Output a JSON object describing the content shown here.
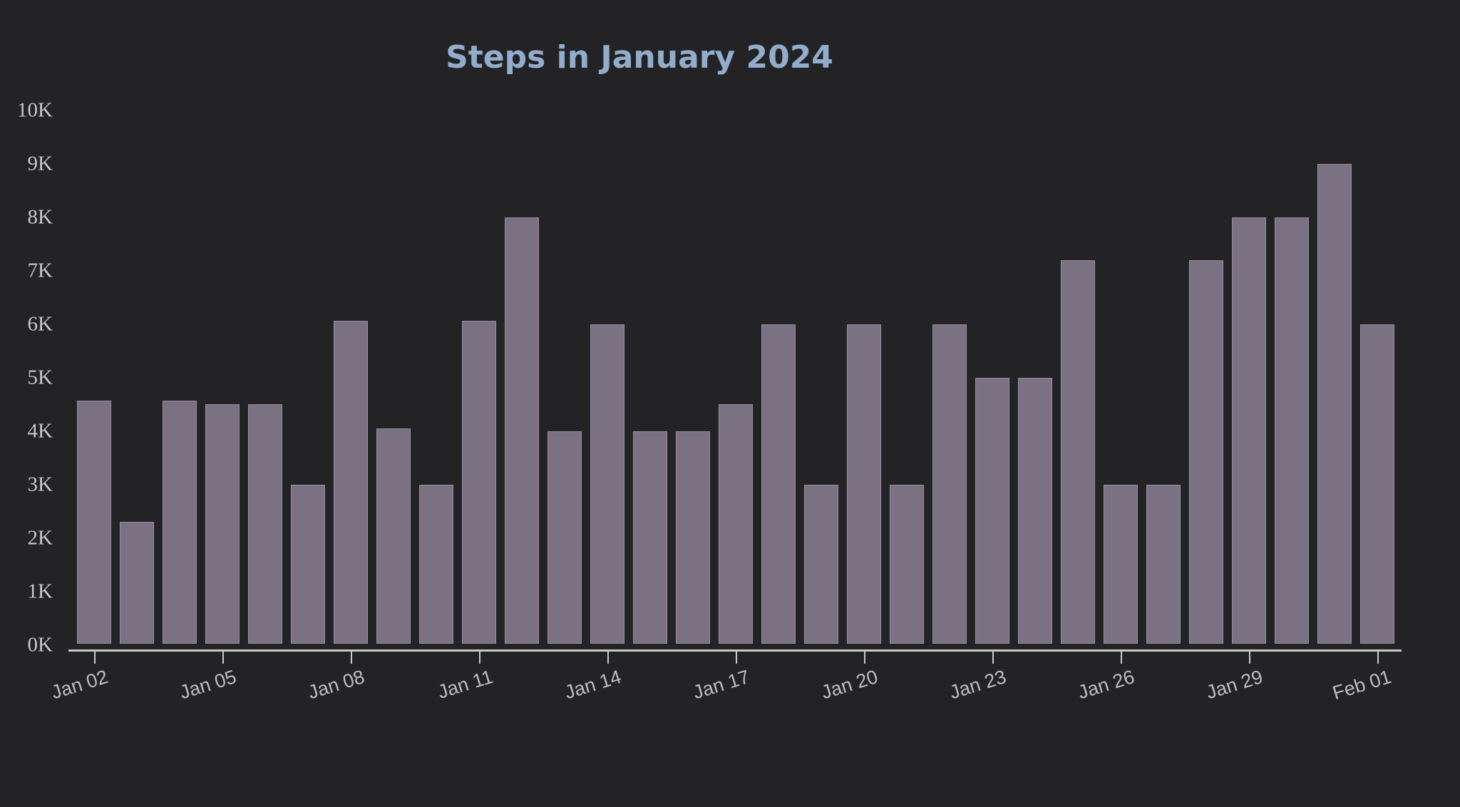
{
  "chart_data": {
    "type": "bar",
    "title": "Steps in January 2024",
    "unit": "K steps",
    "categories": [
      "Jan 02",
      "Jan 03",
      "Jan 04",
      "Jan 05",
      "Jan 06",
      "Jan 07",
      "Jan 08",
      "Jan 09",
      "Jan 10",
      "Jan 11",
      "Jan 12",
      "Jan 13",
      "Jan 14",
      "Jan 15",
      "Jan 16",
      "Jan 17",
      "Jan 18",
      "Jan 19",
      "Jan 20",
      "Jan 21",
      "Jan 22",
      "Jan 23",
      "Jan 24",
      "Jan 25",
      "Jan 26",
      "Jan 27",
      "Jan 28",
      "Jan 29",
      "Jan 30",
      "Jan 31",
      "Feb 01"
    ],
    "values_k": [
      4.57,
      2.31,
      4.57,
      4.5,
      4.5,
      3.0,
      6.07,
      4.05,
      3.0,
      6.07,
      8.0,
      4.0,
      6.0,
      4.0,
      4.0,
      4.5,
      6.0,
      3.0,
      6.0,
      3.0,
      6.0,
      5.0,
      5.0,
      7.2,
      3.0,
      3.0,
      7.2,
      8.0,
      8.0,
      9.0,
      6.0
    ],
    "xlabel": "",
    "ylabel": "",
    "ylim": [
      0,
      10
    ],
    "y_tick_labels": [
      "0K",
      "1K",
      "2K",
      "3K",
      "4K",
      "5K",
      "6K",
      "7K",
      "8K",
      "9K",
      "10K"
    ],
    "x_tick_labels": [
      "Jan 02",
      "Jan 05",
      "Jan 08",
      "Jan 11",
      "Jan 14",
      "Jan 17",
      "Jan 20",
      "Jan 23",
      "Jan 26",
      "Jan 29",
      "Feb 01"
    ],
    "x_tick_interval_days": 3,
    "grid": false,
    "legend": false
  },
  "colors": {
    "background": "#232326",
    "bar_fill": "#7a7183",
    "bar_edge": "rgba(216,210,226,0.30)",
    "title": "#92accb",
    "axis_line": "#c9c9c9",
    "y_tick_text": "#c8c8c8",
    "x_tick_text": "#bdbdbd"
  }
}
